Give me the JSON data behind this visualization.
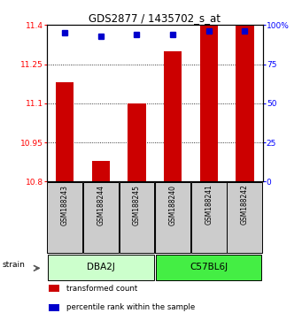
{
  "title": "GDS2877 / 1435702_s_at",
  "samples": [
    "GSM188243",
    "GSM188244",
    "GSM188245",
    "GSM188240",
    "GSM188241",
    "GSM188242"
  ],
  "transformed_counts": [
    11.18,
    10.88,
    11.1,
    11.3,
    11.4,
    11.4
  ],
  "percentile_ranks": [
    95,
    93,
    94,
    94,
    96,
    96
  ],
  "ylim_left": [
    10.8,
    11.4
  ],
  "ylim_right": [
    0,
    100
  ],
  "yticks_left": [
    10.8,
    10.95,
    11.1,
    11.25,
    11.4
  ],
  "yticks_right": [
    0,
    25,
    50,
    75,
    100
  ],
  "ytick_labels_left": [
    "10.8",
    "10.95",
    "11.1",
    "11.25",
    "11.4"
  ],
  "ytick_labels_right": [
    "0",
    "25",
    "50",
    "75",
    "100%"
  ],
  "groups": [
    {
      "name": "DBA2J",
      "indices": [
        0,
        1,
        2
      ],
      "color": "#ccffcc"
    },
    {
      "name": "C57BL6J",
      "indices": [
        3,
        4,
        5
      ],
      "color": "#44ee44"
    }
  ],
  "bar_color": "#cc0000",
  "dot_color": "#0000cc",
  "bar_width": 0.5,
  "bar_bottom": 10.8,
  "sample_box_color": "#cccccc",
  "strain_label": "strain",
  "legend_items": [
    "transformed count",
    "percentile rank within the sample"
  ],
  "legend_colors": [
    "#cc0000",
    "#0000cc"
  ]
}
